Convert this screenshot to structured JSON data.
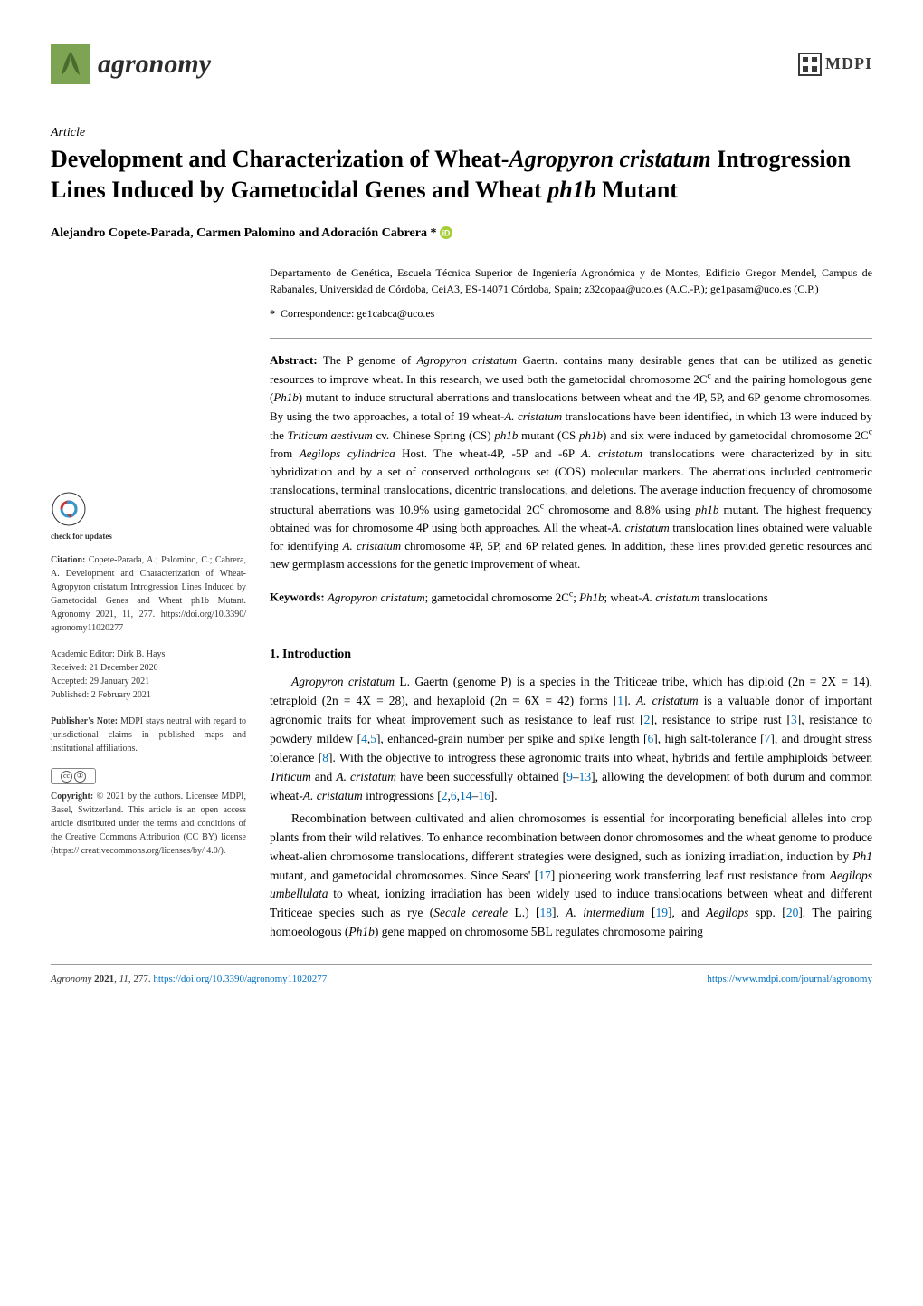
{
  "journal": {
    "name": "agronomy",
    "logo_bg": "#7da453",
    "publisher": "MDPI",
    "publisher_color": "#3a3a3a"
  },
  "article": {
    "type": "Article",
    "title_parts": {
      "p1": "Development and Characterization of Wheat-",
      "p2": "Agropyron cristatum",
      "p3": " Introgression Lines Induced by Gametocidal Genes and Wheat ",
      "p4": "ph1b",
      "p5": " Mutant"
    },
    "authors": "Alejandro Copete-Parada, Carmen Palomino and Adoración Cabrera *",
    "affiliation": "Departamento de Genética, Escuela Técnica Superior de Ingeniería Agronómica y de Montes, Edificio Gregor Mendel, Campus de Rabanales, Universidad de Córdoba, CeiA3, ES-14071 Córdoba, Spain; z32copaa@uco.es (A.C.-P.); ge1pasam@uco.es (C.P.)",
    "correspondence_label": "*",
    "correspondence": "Correspondence: ge1cabca@uco.es"
  },
  "abstract": {
    "label": "Abstract:",
    "text_parts": [
      {
        "t": " The P genome of "
      },
      {
        "t": "Agropyron cristatum",
        "i": true
      },
      {
        "t": " Gaertn. contains many desirable genes that can be utilized as genetic resources to improve wheat. In this research, we used both the gametocidal chromosome 2C"
      },
      {
        "t": "c",
        "sup": true
      },
      {
        "t": " and the pairing homologous gene ("
      },
      {
        "t": "Ph1b",
        "i": true
      },
      {
        "t": ") mutant to induce structural aberrations and translocations between wheat and the 4P, 5P, and 6P genome chromosomes. By using the two approaches, a total of 19 wheat-"
      },
      {
        "t": "A. cristatum",
        "i": true
      },
      {
        "t": " translocations have been identified, in which 13 were induced by the "
      },
      {
        "t": "Triticum aestivum",
        "i": true
      },
      {
        "t": " cv. Chinese Spring (CS) "
      },
      {
        "t": "ph1b",
        "i": true
      },
      {
        "t": " mutant (CS "
      },
      {
        "t": "ph1b",
        "i": true
      },
      {
        "t": ") and six were induced by gametocidal chromosome 2C"
      },
      {
        "t": "c",
        "sup": true
      },
      {
        "t": " from "
      },
      {
        "t": "Aegilops cylindrica",
        "i": true
      },
      {
        "t": " Host. The wheat-4P, -5P and -6P "
      },
      {
        "t": "A. cristatum",
        "i": true
      },
      {
        "t": " translocations were characterized by in situ hybridization and by a set of conserved orthologous set (COS) molecular markers. The aberrations included centromeric translocations, terminal translocations, dicentric translocations, and deletions. The average induction frequency of chromosome structural aberrations was 10.9% using gametocidal 2C"
      },
      {
        "t": "c",
        "sup": true
      },
      {
        "t": " chromosome and 8.8% using "
      },
      {
        "t": "ph1b",
        "i": true
      },
      {
        "t": " mutant. The highest frequency obtained was for chromosome 4P using both approaches. All the wheat-"
      },
      {
        "t": "A. cristatum",
        "i": true
      },
      {
        "t": " translocation lines obtained were valuable for identifying "
      },
      {
        "t": "A. cristatum",
        "i": true
      },
      {
        "t": " chromosome 4P, 5P, and 6P related genes. In addition, these lines provided genetic resources and new germplasm accessions for the genetic improvement of wheat."
      }
    ]
  },
  "keywords": {
    "label": "Keywords:",
    "text_parts": [
      {
        "t": " "
      },
      {
        "t": "Agropyron cristatum",
        "i": true
      },
      {
        "t": "; gametocidal chromosome 2C"
      },
      {
        "t": "c",
        "sup": true
      },
      {
        "t": "; "
      },
      {
        "t": "Ph1b",
        "i": true
      },
      {
        "t": "; wheat-"
      },
      {
        "t": "A. cristatum",
        "i": true
      },
      {
        "t": " translocations"
      }
    ]
  },
  "section1": {
    "heading": "1. Introduction",
    "para1_parts": [
      {
        "t": "Agropyron cristatum",
        "i": true
      },
      {
        "t": " L. Gaertn (genome P) is a species in the Triticeae tribe, which has diploid (2n = 2X = 14), tetraploid (2n = 4X = 28), and hexaploid (2n = 6X = 42) forms ["
      },
      {
        "t": "1",
        "ref": true
      },
      {
        "t": "]. "
      },
      {
        "t": "A. cristatum",
        "i": true
      },
      {
        "t": " is a valuable donor of important agronomic traits for wheat improvement such as resistance to leaf rust ["
      },
      {
        "t": "2",
        "ref": true
      },
      {
        "t": "], resistance to stripe rust ["
      },
      {
        "t": "3",
        "ref": true
      },
      {
        "t": "], resistance to powdery mildew ["
      },
      {
        "t": "4",
        "ref": true
      },
      {
        "t": ","
      },
      {
        "t": "5",
        "ref": true
      },
      {
        "t": "], enhanced-grain number per spike and spike length ["
      },
      {
        "t": "6",
        "ref": true
      },
      {
        "t": "], high salt-tolerance ["
      },
      {
        "t": "7",
        "ref": true
      },
      {
        "t": "], and drought stress tolerance ["
      },
      {
        "t": "8",
        "ref": true
      },
      {
        "t": "]. With the objective to introgress these agronomic traits into wheat, hybrids and fertile amphiploids between "
      },
      {
        "t": "Triticum",
        "i": true
      },
      {
        "t": " and "
      },
      {
        "t": "A. cristatum",
        "i": true
      },
      {
        "t": " have been successfully obtained ["
      },
      {
        "t": "9",
        "ref": true
      },
      {
        "t": "–"
      },
      {
        "t": "13",
        "ref": true
      },
      {
        "t": "], allowing the development of both durum and common wheat-"
      },
      {
        "t": "A. cristatum",
        "i": true
      },
      {
        "t": " introgressions ["
      },
      {
        "t": "2",
        "ref": true
      },
      {
        "t": ","
      },
      {
        "t": "6",
        "ref": true
      },
      {
        "t": ","
      },
      {
        "t": "14",
        "ref": true
      },
      {
        "t": "–"
      },
      {
        "t": "16",
        "ref": true
      },
      {
        "t": "]."
      }
    ],
    "para2_parts": [
      {
        "t": "Recombination between cultivated and alien chromosomes is essential for incorporating beneficial alleles into crop plants from their wild relatives. To enhance recombination between donor chromosomes and the wheat genome to produce wheat-alien chromosome translocations, different strategies were designed, such as ionizing irradiation, induction by "
      },
      {
        "t": "Ph1",
        "i": true
      },
      {
        "t": " mutant, and gametocidal chromosomes. Since Sears' ["
      },
      {
        "t": "17",
        "ref": true
      },
      {
        "t": "] pioneering work transferring leaf rust resistance from "
      },
      {
        "t": "Aegilops umbellulata",
        "i": true
      },
      {
        "t": " to wheat, ionizing irradiation has been widely used to induce translocations between wheat and different Triticeae species such as rye ("
      },
      {
        "t": "Secale cereale",
        "i": true
      },
      {
        "t": " L.) ["
      },
      {
        "t": "18",
        "ref": true
      },
      {
        "t": "], "
      },
      {
        "t": "A. intermedium",
        "i": true
      },
      {
        "t": " ["
      },
      {
        "t": "19",
        "ref": true
      },
      {
        "t": "], and "
      },
      {
        "t": "Aegilops",
        "i": true
      },
      {
        "t": " spp. ["
      },
      {
        "t": "20",
        "ref": true
      },
      {
        "t": "]. The pairing homoeologous ("
      },
      {
        "t": "Ph1b",
        "i": true
      },
      {
        "t": ") gene mapped on chromosome 5BL regulates chromosome pairing"
      }
    ]
  },
  "sidebar": {
    "check_updates": "check for updates",
    "citation_label": "Citation:",
    "citation": " Copete-Parada, A.; Palomino, C.; Cabrera, A. Development and Characterization of Wheat-Agropyron cristatum Introgression Lines Induced by Gametocidal Genes and Wheat ph1b Mutant. Agronomy 2021, 11, 277. https://doi.org/10.3390/ agronomy11020277",
    "editor": "Academic Editor: Dirk B. Hays",
    "received": "Received: 21 December 2020",
    "accepted": "Accepted: 29 January 2021",
    "published": "Published: 2 February 2021",
    "publishers_note_label": "Publisher's Note:",
    "publishers_note": " MDPI stays neutral with regard to jurisdictional claims in published maps and institutional affiliations.",
    "copyright_label": "Copyright:",
    "copyright": " © 2021 by the authors. Licensee MDPI, Basel, Switzerland. This article is an open access article distributed under the terms and conditions of the Creative Commons Attribution (CC BY) license (https:// creativecommons.org/licenses/by/ 4.0/)."
  },
  "footer": {
    "left_parts": [
      {
        "t": "Agronomy ",
        "i": true
      },
      {
        "t": "2021",
        "b": true
      },
      {
        "t": ", "
      },
      {
        "t": "11",
        "i": true
      },
      {
        "t": ", 277. "
      },
      {
        "t": "https://doi.org/10.3390/agronomy11020277",
        "link": true
      }
    ],
    "right": "https://www.mdpi.com/journal/agronomy"
  },
  "colors": {
    "ref_link": "#0070c0",
    "logo_green": "#7da453",
    "text": "#000000",
    "divider": "#999999"
  }
}
